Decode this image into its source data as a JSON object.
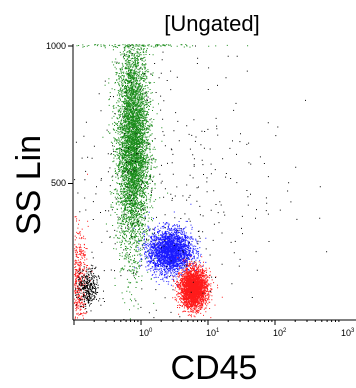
{
  "chart_data": {
    "type": "scatter",
    "title": "[Ungated]",
    "xlabel": "CD45",
    "ylabel": "SS Lin",
    "x_scale": "log",
    "xlim": [
      0.1,
      1000
    ],
    "ylim": [
      0,
      1023
    ],
    "x_ticks": [
      {
        "base": "10",
        "exp": "0",
        "value": 1
      },
      {
        "base": "10",
        "exp": "1",
        "value": 10
      },
      {
        "base": "10",
        "exp": "2",
        "value": 100
      },
      {
        "base": "10",
        "exp": "3",
        "value": 1000
      }
    ],
    "y_ticks": [
      {
        "label": "500",
        "value": 500
      },
      {
        "label": "1000",
        "value": 1000
      }
    ],
    "grid": false,
    "colors": {
      "green": "#1a8c1a",
      "blue": "#1a1aff",
      "red": "#ff1a1a",
      "black": "#000000"
    },
    "series": [
      {
        "color": "green",
        "center_cd45": 0.75,
        "center_ss": 640,
        "spread_log_x": 0.12,
        "spread_ss": 190,
        "count": 5200
      },
      {
        "color": "green",
        "center_cd45": 0.9,
        "center_ss": 1010,
        "spread_log_x": 0.6,
        "spread_ss": 6,
        "count": 260
      },
      {
        "color": "blue",
        "center_cd45": 2.7,
        "center_ss": 255,
        "spread_log_x": 0.16,
        "spread_ss": 40,
        "count": 2600
      },
      {
        "color": "red",
        "center_cd45": 6.0,
        "center_ss": 120,
        "spread_log_x": 0.1,
        "spread_ss": 35,
        "count": 3000
      },
      {
        "color": "red",
        "center_cd45": 0.11,
        "center_ss": 150,
        "spread_log_x": 0.08,
        "spread_ss": 90,
        "count": 600
      },
      {
        "color": "black",
        "center_cd45": 0.16,
        "center_ss": 120,
        "spread_log_x": 0.08,
        "spread_ss": 35,
        "count": 350
      },
      {
        "color": "black",
        "center_cd45": 2.0,
        "center_ss": 500,
        "spread_log_x": 0.9,
        "spread_ss": 300,
        "count": 420
      }
    ]
  }
}
